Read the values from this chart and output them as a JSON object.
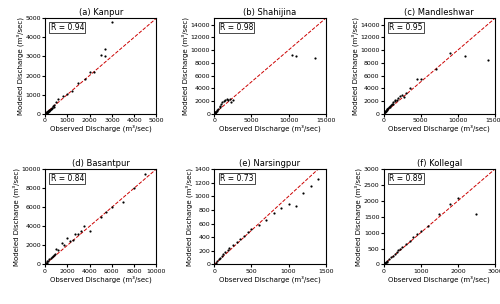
{
  "subplots": [
    {
      "title": "(a) Kanpur",
      "R": "0.94",
      "xlim": [
        0,
        5000
      ],
      "ylim": [
        0,
        5000
      ],
      "xticks": [
        0,
        1000,
        2000,
        3000,
        4000,
        5000
      ],
      "yticks": [
        0,
        1000,
        2000,
        3000,
        4000,
        5000
      ],
      "obs": [
        30,
        40,
        50,
        60,
        70,
        80,
        90,
        100,
        110,
        120,
        130,
        150,
        160,
        180,
        200,
        220,
        250,
        280,
        300,
        320,
        350,
        400,
        420,
        500,
        600,
        800,
        1000,
        1200,
        1500,
        1800,
        2000,
        2200,
        2500,
        2700,
        2700,
        3000
      ],
      "mod": [
        20,
        30,
        40,
        50,
        60,
        70,
        80,
        90,
        100,
        110,
        120,
        150,
        130,
        160,
        200,
        200,
        250,
        220,
        300,
        280,
        380,
        450,
        350,
        600,
        750,
        950,
        1050,
        1200,
        1600,
        1800,
        2200,
        2200,
        3050,
        3000,
        3400,
        4800
      ]
    },
    {
      "title": "(b) Shahijina",
      "R": "0.98",
      "xlim": [
        0,
        15000
      ],
      "ylim": [
        0,
        15000
      ],
      "xticks": [
        0,
        5000,
        10000,
        15000
      ],
      "yticks": [
        0,
        2000,
        4000,
        6000,
        8000,
        10000,
        12000,
        14000
      ],
      "obs": [
        50,
        80,
        100,
        150,
        200,
        300,
        400,
        500,
        700,
        800,
        900,
        1100,
        1300,
        1500,
        1700,
        1900,
        2100,
        2300,
        2500,
        10500,
        11000,
        13500
      ],
      "mod": [
        50,
        100,
        200,
        200,
        300,
        500,
        600,
        800,
        1000,
        1200,
        1500,
        1800,
        2000,
        2200,
        2300,
        2100,
        2300,
        1900,
        2100,
        9200,
        9000,
        8800
      ]
    },
    {
      "title": "(c) Mandleshwar",
      "R": "0.95",
      "xlim": [
        0,
        15000
      ],
      "ylim": [
        0,
        15000
      ],
      "xticks": [
        0,
        5000,
        10000,
        15000
      ],
      "yticks": [
        0,
        2000,
        4000,
        6000,
        8000,
        10000,
        12000,
        14000
      ],
      "obs": [
        100,
        150,
        200,
        250,
        300,
        350,
        400,
        450,
        500,
        600,
        700,
        800,
        900,
        1000,
        1100,
        1200,
        1300,
        1500,
        1600,
        1800,
        2000,
        2200,
        2500,
        2700,
        3000,
        3500,
        4500,
        5000,
        7000,
        9000,
        11000,
        14000
      ],
      "mod": [
        100,
        200,
        300,
        400,
        450,
        500,
        600,
        700,
        800,
        900,
        1000,
        1100,
        1200,
        1300,
        1500,
        1600,
        1800,
        2000,
        2100,
        2200,
        2500,
        2800,
        3000,
        2700,
        3200,
        4000,
        5500,
        5500,
        7000,
        9500,
        9000,
        8500
      ]
    },
    {
      "title": "(d) Basantpur",
      "R": "0.84",
      "xlim": [
        0,
        10000
      ],
      "ylim": [
        0,
        10000
      ],
      "xticks": [
        0,
        2000,
        4000,
        6000,
        8000,
        10000
      ],
      "yticks": [
        0,
        2000,
        4000,
        6000,
        8000,
        10000
      ],
      "obs": [
        30,
        50,
        80,
        100,
        150,
        200,
        300,
        400,
        500,
        600,
        700,
        800,
        900,
        1000,
        1200,
        1500,
        1700,
        2000,
        2200,
        2500,
        2700,
        3000,
        3200,
        3500,
        4000,
        5000,
        5500,
        6000,
        7000,
        8000,
        9000
      ],
      "mod": [
        20,
        40,
        60,
        200,
        200,
        400,
        400,
        600,
        700,
        800,
        900,
        1000,
        1100,
        1600,
        1500,
        2200,
        2000,
        2800,
        2500,
        2600,
        3200,
        3200,
        3500,
        4000,
        3500,
        5000,
        5500,
        6000,
        6500,
        8000,
        9500
      ]
    },
    {
      "title": "(e) Narsingpur",
      "R": "0.73",
      "xlim": [
        0,
        1500
      ],
      "ylim": [
        0,
        1400
      ],
      "xticks": [
        0,
        500,
        1000,
        1500
      ],
      "yticks": [
        0,
        200,
        400,
        600,
        800,
        1000,
        1200,
        1400
      ],
      "obs": [
        20,
        40,
        60,
        80,
        100,
        120,
        150,
        180,
        200,
        250,
        300,
        350,
        400,
        450,
        500,
        600,
        700,
        800,
        900,
        1000,
        1100,
        1200,
        1300,
        1400
      ],
      "mod": [
        20,
        50,
        80,
        100,
        120,
        150,
        180,
        210,
        240,
        280,
        330,
        370,
        420,
        470,
        520,
        580,
        650,
        750,
        830,
        880,
        860,
        1050,
        1150,
        1250
      ]
    },
    {
      "title": "(f) Kollegal",
      "R": "0.89",
      "xlim": [
        0,
        3000
      ],
      "ylim": [
        0,
        3000
      ],
      "xticks": [
        0,
        1000,
        2000,
        3000
      ],
      "yticks": [
        0,
        500,
        1000,
        1500,
        2000,
        2500,
        3000
      ],
      "obs": [
        20,
        30,
        40,
        50,
        60,
        80,
        100,
        150,
        200,
        250,
        300,
        350,
        400,
        450,
        500,
        600,
        700,
        800,
        900,
        1000,
        1200,
        1500,
        1800,
        2000,
        2500
      ],
      "mod": [
        20,
        30,
        40,
        50,
        70,
        90,
        120,
        180,
        230,
        280,
        330,
        400,
        450,
        500,
        550,
        650,
        750,
        850,
        950,
        1050,
        1200,
        1600,
        1900,
        2100,
        1600
      ]
    }
  ],
  "xlabel": "Observed Discharge (m³/sec)",
  "ylabel": "Modeled Discharge (m³/sec)",
  "line_color": "#cc0000",
  "dot_color": "#000000",
  "dot_size": 2.5,
  "fig_bg": "#ffffff",
  "title_fontsize": 6,
  "label_fontsize": 5,
  "tick_fontsize": 4.5,
  "R_fontsize": 5.5
}
